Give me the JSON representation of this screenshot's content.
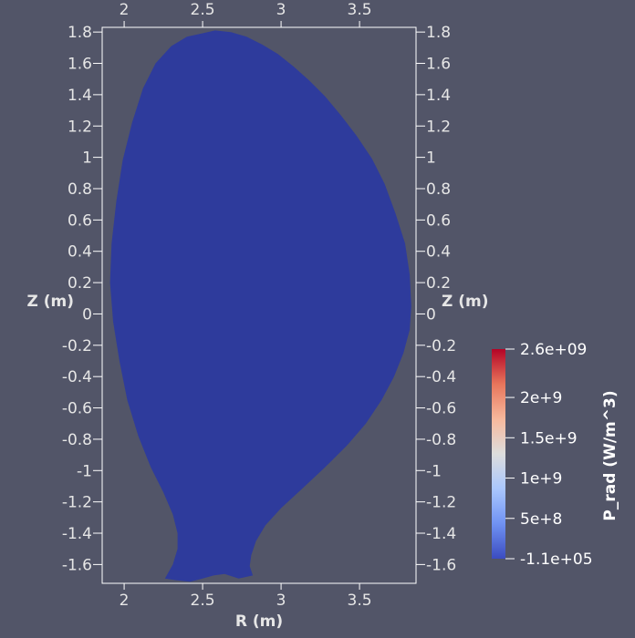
{
  "chart_data": {
    "type": "heatmap",
    "x_axis": {
      "label": "R (m)",
      "range": [
        1.86,
        3.86
      ],
      "ticks": [
        2,
        2.5,
        3,
        3.5
      ],
      "tick_labels": [
        "2",
        "2.5",
        "3",
        "3.5"
      ]
    },
    "y_axis": {
      "label": "Z (m)",
      "range": [
        -1.72,
        1.83
      ],
      "ticks": [
        1.8,
        1.6,
        1.4,
        1.2,
        1,
        0.8,
        0.6,
        0.4,
        0.2,
        0,
        -0.2,
        -0.4,
        -0.6,
        -0.8,
        -1,
        -1.2,
        -1.4,
        -1.6
      ],
      "tick_labels": [
        "1.8",
        "1.6",
        "1.4",
        "1.2",
        "1",
        "0.8",
        "0.6",
        "0.4",
        "0.2",
        "0",
        "-0.2",
        "-0.4",
        "-0.6",
        "-0.8",
        "-1",
        "-1.2",
        "-1.4",
        "-1.6"
      ]
    },
    "colorbar": {
      "title": "P_rad (W/m^3)",
      "range": [
        -110000,
        2600000000
      ],
      "ticks": [
        2600000000,
        2000000000,
        1500000000,
        1000000000,
        500000000,
        -110000
      ],
      "tick_labels": [
        "2.6e+09",
        "2e+9",
        "1.5e+9",
        "1e+9",
        "5e+8",
        "-1.1e+05"
      ],
      "colormap": "cool-to-warm",
      "colors": [
        "#3b4cc0",
        "#7092f3",
        "#aac7fd",
        "#dddddd",
        "#f7b89c",
        "#e7755b",
        "#b40426"
      ]
    },
    "field_value": -110000,
    "region_fill": "#2e3b9c",
    "boundary": [
      [
        2.49,
        1.79
      ],
      [
        2.58,
        1.81
      ],
      [
        2.68,
        1.8
      ],
      [
        2.78,
        1.77
      ],
      [
        2.88,
        1.72
      ],
      [
        2.98,
        1.66
      ],
      [
        3.08,
        1.58
      ],
      [
        3.18,
        1.49
      ],
      [
        3.28,
        1.39
      ],
      [
        3.38,
        1.27
      ],
      [
        3.48,
        1.14
      ],
      [
        3.58,
        0.99
      ],
      [
        3.66,
        0.83
      ],
      [
        3.73,
        0.64
      ],
      [
        3.79,
        0.45
      ],
      [
        3.82,
        0.25
      ],
      [
        3.83,
        0.05
      ],
      [
        3.82,
        -0.1
      ],
      [
        3.78,
        -0.25
      ],
      [
        3.72,
        -0.4
      ],
      [
        3.64,
        -0.55
      ],
      [
        3.54,
        -0.7
      ],
      [
        3.42,
        -0.84
      ],
      [
        3.28,
        -0.98
      ],
      [
        3.14,
        -1.11
      ],
      [
        3.0,
        -1.24
      ],
      [
        2.9,
        -1.35
      ],
      [
        2.84,
        -1.45
      ],
      [
        2.81,
        -1.54
      ],
      [
        2.8,
        -1.61
      ],
      [
        2.82,
        -1.67
      ],
      [
        2.73,
        -1.69
      ],
      [
        2.64,
        -1.66
      ],
      [
        2.57,
        -1.67
      ],
      [
        2.5,
        -1.69
      ],
      [
        2.42,
        -1.71
      ],
      [
        2.33,
        -1.7
      ],
      [
        2.26,
        -1.69
      ],
      [
        2.31,
        -1.6
      ],
      [
        2.34,
        -1.5
      ],
      [
        2.34,
        -1.4
      ],
      [
        2.31,
        -1.28
      ],
      [
        2.25,
        -1.14
      ],
      [
        2.17,
        -0.98
      ],
      [
        2.09,
        -0.78
      ],
      [
        2.02,
        -0.55
      ],
      [
        1.97,
        -0.3
      ],
      [
        1.93,
        -0.05
      ],
      [
        1.91,
        0.2
      ],
      [
        1.92,
        0.45
      ],
      [
        1.95,
        0.72
      ],
      [
        1.99,
        0.98
      ],
      [
        2.05,
        1.22
      ],
      [
        2.12,
        1.44
      ],
      [
        2.2,
        1.6
      ],
      [
        2.3,
        1.71
      ],
      [
        2.4,
        1.77
      ]
    ]
  }
}
